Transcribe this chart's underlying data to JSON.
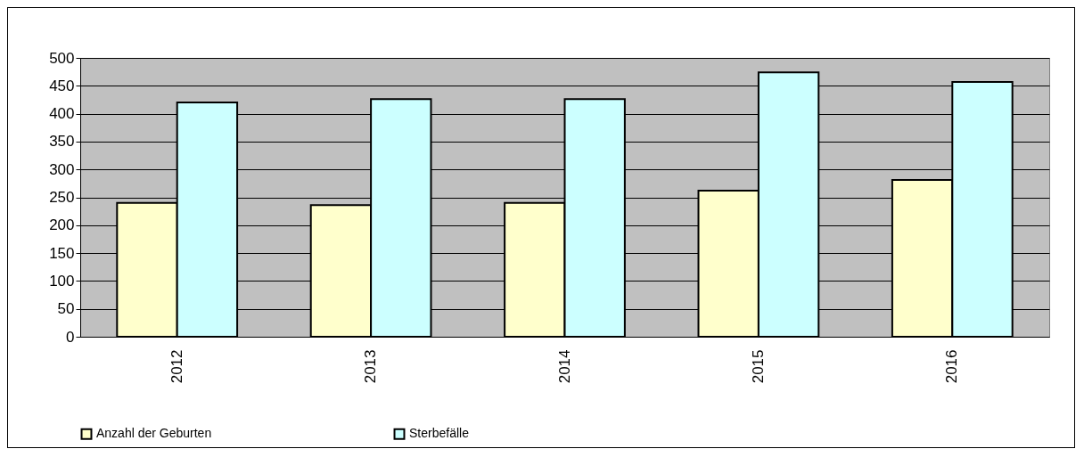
{
  "chart_data": {
    "type": "bar",
    "categories": [
      "2012",
      "2013",
      "2014",
      "2015",
      "2016"
    ],
    "series": [
      {
        "name": "Anzahl der Geburten",
        "color": "#ffffcc",
        "values": [
          240,
          236,
          240,
          262,
          281
        ]
      },
      {
        "name": "Sterbefälle",
        "color": "#ccffff",
        "values": [
          420,
          426,
          426,
          474,
          457
        ]
      }
    ],
    "ylim": [
      0,
      500
    ],
    "yticks": [
      0,
      50,
      100,
      150,
      200,
      250,
      300,
      350,
      400,
      450,
      500
    ],
    "grid": "y",
    "legend": "bottom"
  }
}
